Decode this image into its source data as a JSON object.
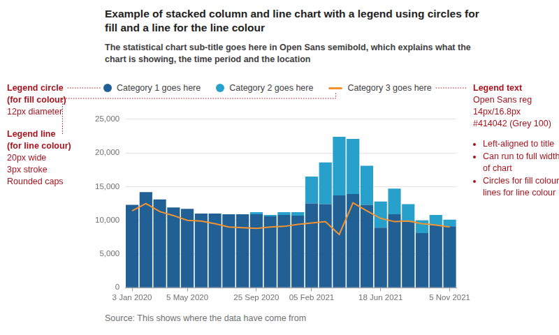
{
  "chart_data": {
    "type": "bar",
    "title": "Example of stacked column and line chart with a legend using circles for fill and a line for the line colour",
    "subtitle": "The statistical chart sub-title goes here in Open Sans semibold, which explains what the chart is showing, the time period and the location",
    "source": "Source: This shows where the data have come from",
    "categories": [
      "3 Jan 2020",
      null,
      null,
      null,
      "5 May 2020",
      null,
      null,
      null,
      null,
      "25 Sep 2020",
      null,
      null,
      null,
      "05 Feb 2021",
      null,
      null,
      null,
      null,
      "18 Jun 2021",
      null,
      null,
      null,
      null,
      "5 Nov 2021"
    ],
    "series": [
      {
        "name": "Category 1 goes here",
        "color": "#206095",
        "values": [
          12300,
          14200,
          13100,
          11900,
          11700,
          11000,
          11000,
          10900,
          10900,
          10900,
          10600,
          10800,
          10700,
          12500,
          12400,
          13700,
          13900,
          12300,
          8900,
          10900,
          9900,
          8100,
          9300,
          9100
        ]
      },
      {
        "name": "Category 2 goes here",
        "color": "#27a0cc",
        "values": [
          0,
          0,
          0,
          0,
          0,
          0,
          0,
          0,
          0,
          300,
          200,
          400,
          500,
          4000,
          6200,
          8700,
          8200,
          5800,
          3900,
          3800,
          2500,
          1900,
          1500,
          1000
        ]
      },
      {
        "name": "Category 3 goes here",
        "color": "#f39431",
        "type": "line",
        "values": [
          11400,
          12500,
          11300,
          10700,
          10000,
          9900,
          9500,
          9000,
          8900,
          8800,
          9000,
          9100,
          9400,
          9600,
          9800,
          7900,
          12600,
          11400,
          10300,
          9800,
          9900,
          9500,
          9300,
          9000
        ]
      }
    ],
    "stacked": true,
    "legend": "top",
    "grid": true,
    "ylim": [
      0,
      25000
    ],
    "yticks": [
      0,
      {
        "value": 5000,
        "label": "5,000"
      },
      {
        "value": 10000,
        "label": "10,000"
      },
      {
        "value": 15000,
        "label": "15,000"
      },
      {
        "value": 20000,
        "label": "20,000"
      },
      {
        "value": 25000,
        "label": "25,000"
      }
    ],
    "annotations": [
      {
        "heading": [
          "Legend circle",
          "(for fill colour)"
        ],
        "lines": [
          "12px diameter"
        ]
      },
      {
        "heading": [
          "Legend line",
          "(for line colour)"
        ],
        "lines": [
          "20px wide",
          "3px stroke",
          "Rounded caps"
        ]
      },
      {
        "heading": [
          "Legend text"
        ],
        "lines": [
          "Open Sans reg",
          "14px/16.8px",
          "#414042 (Grey 100)"
        ],
        "bullets": [
          "Left-aligned to title",
          "Can run to full width of chart",
          "Circles for fill colour, lines for line colour"
        ]
      }
    ]
  }
}
